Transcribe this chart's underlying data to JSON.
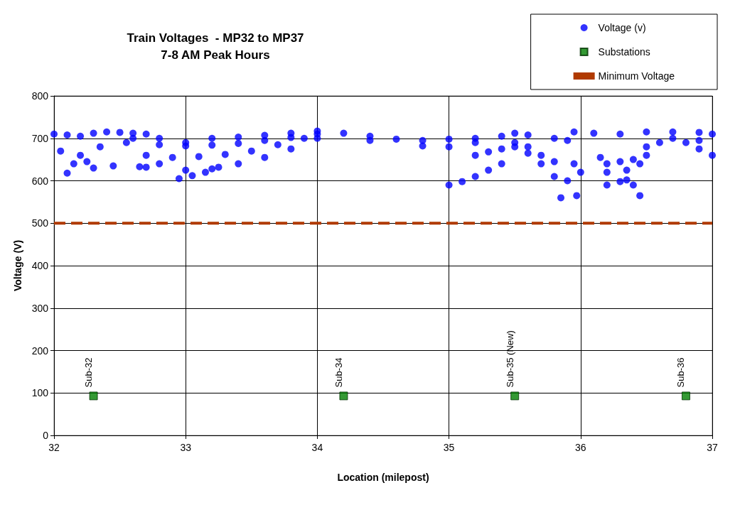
{
  "chart_data": {
    "type": "scatter",
    "title": "Train Voltages  - MP32 to MP37",
    "subtitle": "7-8 AM Peak Hours",
    "xlabel": "Location (milepost)",
    "ylabel": "Voltage (V)",
    "xlim": [
      32,
      37
    ],
    "xticks": [
      32,
      33,
      34,
      35,
      36,
      37
    ],
    "ylim": [
      0,
      800
    ],
    "yticks": [
      0,
      100,
      200,
      300,
      400,
      500,
      600,
      700,
      800
    ],
    "grid": true,
    "legend": "top right",
    "series": [
      {
        "name": "Voltage (v)",
        "marker": "circle",
        "color": "#0000ff",
        "x": [
          32.0,
          32.1,
          32.2,
          32.3,
          32.4,
          32.5,
          32.6,
          32.7,
          32.8,
          33.0,
          33.2,
          33.4,
          33.6,
          33.8,
          34.0,
          34.2,
          34.4,
          34.6,
          34.8,
          35.0,
          35.2,
          35.4,
          35.5,
          35.6,
          35.8,
          35.9,
          35.95,
          36.1,
          36.3,
          36.5,
          36.7,
          36.9,
          37.0,
          32.8,
          33.0,
          33.2,
          33.4,
          33.6,
          33.8,
          34.0,
          34.4,
          34.8,
          35.0,
          35.2,
          32.7,
          32.9,
          33.1,
          33.3,
          33.5,
          33.7,
          33.9,
          32.8,
          33.0,
          33.2,
          33.4,
          33.6,
          33.8,
          34.0,
          32.95,
          33.05,
          33.15,
          33.25,
          32.05,
          32.1,
          32.15,
          32.2,
          32.25,
          32.3,
          32.35,
          32.45,
          32.55,
          32.65,
          32.6,
          32.7,
          35.0,
          35.1,
          35.2,
          35.3,
          35.4,
          35.5,
          35.2,
          35.3,
          35.4,
          35.6,
          35.7,
          35.8,
          35.85,
          35.9,
          35.95,
          35.97,
          36.0,
          35.5,
          35.6,
          35.7,
          35.8,
          36.15,
          36.2,
          36.3,
          36.4,
          36.5,
          36.6,
          36.8,
          36.9,
          37.0,
          36.2,
          36.3,
          36.35,
          36.4,
          36.45,
          36.2,
          36.35,
          36.45,
          36.5,
          36.7,
          36.9
        ],
        "values": [
          710,
          708,
          705,
          712,
          715,
          714,
          712,
          710,
          700,
          690,
          700,
          703,
          707,
          712,
          717,
          712,
          705,
          698,
          695,
          698,
          700,
          705,
          712,
          708,
          700,
          695,
          715,
          712,
          710,
          715,
          715,
          714,
          710,
          685,
          682,
          684,
          688,
          695,
          702,
          710,
          695,
          682,
          680,
          690,
          660,
          655,
          657,
          662,
          670,
          685,
          700,
          640,
          625,
          628,
          640,
          655,
          675,
          700,
          605,
          612,
          620,
          632,
          670,
          618,
          640,
          660,
          645,
          630,
          680,
          635,
          690,
          633,
          700,
          632,
          590,
          598,
          610,
          625,
          640,
          680,
          660,
          668,
          675,
          665,
          640,
          610,
          560,
          600,
          640,
          565,
          620,
          690,
          680,
          660,
          645,
          655,
          640,
          645,
          650,
          660,
          690,
          690,
          675,
          660,
          590,
          598,
          602,
          590,
          565,
          620,
          625,
          640,
          680,
          700,
          695
        ]
      },
      {
        "name": "Substations",
        "type": "scatter",
        "marker": "square",
        "color": "#008000",
        "x": [
          32.3,
          34.2,
          35.5,
          36.8
        ],
        "values": [
          93,
          93,
          93,
          93
        ]
      },
      {
        "name": "Minimum Voltage",
        "type": "line",
        "marker": "none",
        "line_style": "dashed",
        "color": "#b03a00",
        "x": [
          32,
          37
        ],
        "values": [
          500,
          500
        ]
      }
    ],
    "annotations": [
      {
        "text": "Sub-32",
        "x": 32.3,
        "y": 93
      },
      {
        "text": "Sub-34",
        "x": 34.2,
        "y": 93
      },
      {
        "text": "Sub-35 (New)",
        "x": 35.5,
        "y": 93
      },
      {
        "text": "Sub-36",
        "x": 36.8,
        "y": 93
      }
    ]
  }
}
